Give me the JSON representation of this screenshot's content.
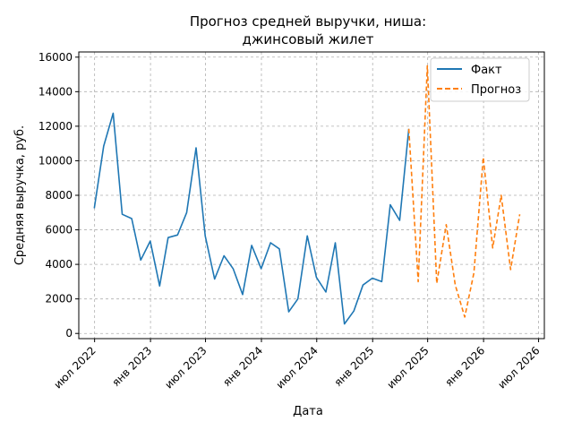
{
  "chart_data": {
    "type": "line",
    "title_lines": [
      "Прогноз средней выручки, ниша:",
      "джинсовый жилет"
    ],
    "xlabel": "Дата",
    "ylabel": "Средняя выручка, руб.",
    "x_ticks": [
      {
        "date": "2022-07-01",
        "label": "июл 2022"
      },
      {
        "date": "2023-01-01",
        "label": "янв 2023"
      },
      {
        "date": "2023-07-01",
        "label": "июл 2023"
      },
      {
        "date": "2024-01-01",
        "label": "янв 2024"
      },
      {
        "date": "2024-07-01",
        "label": "июл 2024"
      },
      {
        "date": "2025-01-01",
        "label": "янв 2025"
      },
      {
        "date": "2025-07-01",
        "label": "июл 2025"
      },
      {
        "date": "2026-01-01",
        "label": "янв 2026"
      },
      {
        "date": "2026-07-01",
        "label": "июл 2026"
      }
    ],
    "y_ticks": [
      0,
      2000,
      4000,
      6000,
      8000,
      10000,
      12000,
      14000,
      16000
    ],
    "xlim": [
      "2022-05-10",
      "2026-07-20"
    ],
    "ylim": [
      -300,
      16300
    ],
    "grid": true,
    "legend_position": "top-right",
    "series": [
      {
        "name": "Факт",
        "color": "#1f77b4",
        "style": "solid",
        "points": [
          [
            "2022-06-30",
            7250
          ],
          [
            "2022-07-31",
            10850
          ],
          [
            "2022-08-31",
            12750
          ],
          [
            "2022-09-30",
            6900
          ],
          [
            "2022-10-31",
            6650
          ],
          [
            "2022-11-30",
            4250
          ],
          [
            "2022-12-31",
            5350
          ],
          [
            "2023-01-31",
            2750
          ],
          [
            "2023-02-28",
            5550
          ],
          [
            "2023-03-31",
            5700
          ],
          [
            "2023-04-30",
            7000
          ],
          [
            "2023-05-31",
            10750
          ],
          [
            "2023-06-30",
            5650
          ],
          [
            "2023-07-31",
            3150
          ],
          [
            "2023-08-31",
            4500
          ],
          [
            "2023-09-30",
            3750
          ],
          [
            "2023-10-31",
            2250
          ],
          [
            "2023-11-30",
            5100
          ],
          [
            "2023-12-31",
            3750
          ],
          [
            "2024-01-31",
            5250
          ],
          [
            "2024-02-29",
            4900
          ],
          [
            "2024-03-31",
            1250
          ],
          [
            "2024-04-30",
            2000
          ],
          [
            "2024-05-31",
            5650
          ],
          [
            "2024-06-30",
            3250
          ],
          [
            "2024-07-31",
            2400
          ],
          [
            "2024-08-31",
            5250
          ],
          [
            "2024-09-30",
            550
          ],
          [
            "2024-10-31",
            1300
          ],
          [
            "2024-11-30",
            2800
          ],
          [
            "2024-12-31",
            3200
          ],
          [
            "2025-01-31",
            3000
          ],
          [
            "2025-02-28",
            7450
          ],
          [
            "2025-03-31",
            6550
          ],
          [
            "2025-04-30",
            11850
          ]
        ]
      },
      {
        "name": "Прогноз",
        "color": "#ff7f0e",
        "style": "dashed",
        "points": [
          [
            "2025-04-30",
            11850
          ],
          [
            "2025-05-31",
            3000
          ],
          [
            "2025-06-30",
            15500
          ],
          [
            "2025-07-31",
            2900
          ],
          [
            "2025-08-31",
            6300
          ],
          [
            "2025-09-30",
            2800
          ],
          [
            "2025-10-31",
            950
          ],
          [
            "2025-11-30",
            3500
          ],
          [
            "2025-12-31",
            10200
          ],
          [
            "2026-01-31",
            4950
          ],
          [
            "2026-02-28",
            8000
          ],
          [
            "2026-03-31",
            3700
          ],
          [
            "2026-04-30",
            6900
          ]
        ]
      }
    ]
  }
}
